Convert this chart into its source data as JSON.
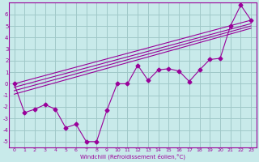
{
  "xlabel": "Windchill (Refroidissement éolien,°C)",
  "bg_color": "#c8eaea",
  "grid_color": "#a0c8c8",
  "line_color": "#990099",
  "xlim": [
    -0.5,
    23.5
  ],
  "ylim": [
    -5.5,
    7.0
  ],
  "xticks": [
    0,
    1,
    2,
    3,
    4,
    5,
    6,
    7,
    8,
    9,
    10,
    11,
    12,
    13,
    14,
    15,
    16,
    17,
    18,
    19,
    20,
    21,
    22,
    23
  ],
  "yticks": [
    -5,
    -4,
    -3,
    -2,
    -1,
    0,
    1,
    2,
    3,
    4,
    5,
    6
  ],
  "main_x": [
    0,
    1,
    2,
    3,
    4,
    5,
    6,
    7,
    8,
    9,
    10,
    11,
    12,
    13,
    14,
    15,
    16,
    17,
    18,
    19,
    20,
    21,
    22,
    23
  ],
  "main_y": [
    0.0,
    -2.5,
    -2.2,
    -1.8,
    -2.2,
    -3.8,
    -3.5,
    -5.0,
    -5.0,
    -2.3,
    0.0,
    0.0,
    1.6,
    0.3,
    1.2,
    1.3,
    1.1,
    0.2,
    1.2,
    2.1,
    2.2,
    5.0,
    6.8,
    5.5
  ],
  "trend1_x": [
    0,
    23
  ],
  "trend1_y": [
    0.0,
    5.5
  ],
  "trend2_x": [
    0,
    23
  ],
  "trend2_y": [
    -0.3,
    5.2
  ],
  "trend3_x": [
    0,
    23
  ],
  "trend3_y": [
    -0.6,
    5.0
  ],
  "trend4_x": [
    0,
    23
  ],
  "trend4_y": [
    -0.9,
    4.8
  ]
}
